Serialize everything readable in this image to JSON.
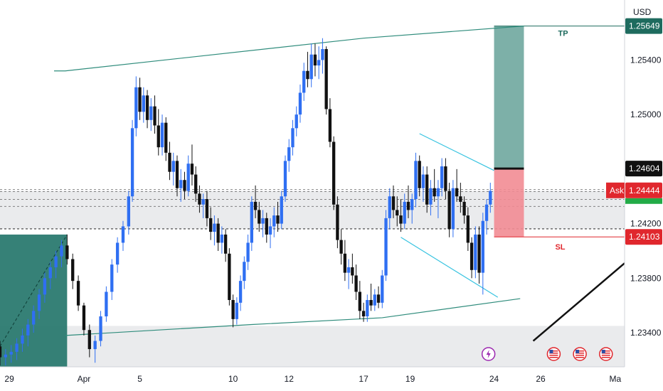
{
  "chart_data": {
    "type": "candlestick",
    "instrument_currency": "USD",
    "y_axis": {
      "ticks": [
        "1.25400",
        "1.25000",
        "1.24200",
        "1.23800",
        "1.23400"
      ],
      "tick_values": [
        1.254,
        1.25,
        1.242,
        1.238,
        1.234
      ],
      "ylim": [
        1.2315,
        1.2584
      ]
    },
    "x_axis": {
      "ticks": [
        "29",
        "Apr",
        "5",
        "10",
        "12",
        "17",
        "19",
        "24",
        "26",
        "Ma"
      ],
      "tick_positions": [
        0.0,
        4.0,
        7.0,
        12.0,
        15.0,
        19.0,
        21.5,
        26.0,
        28.5,
        32.5
      ],
      "xlim": [
        -0.5,
        33.0
      ]
    },
    "price_badges": [
      {
        "key": "tp",
        "text": "1.25649",
        "value": 1.25649,
        "color": "#1e6b5e"
      },
      {
        "key": "entry",
        "text": "1.24604",
        "value": 1.24604,
        "color": "#111111"
      },
      {
        "key": "ask",
        "label": "Ask",
        "text": "1.24444",
        "value": 1.24444,
        "color": "#e0272d"
      },
      {
        "key": "sl",
        "text": "1.24103",
        "value": 1.24103,
        "color": "#e0272d"
      }
    ],
    "position": {
      "entry": 1.24604,
      "target": 1.25649,
      "stop": 1.24103,
      "x_start": 26.0,
      "x_end": 27.6,
      "target_label": "TP",
      "stop_label": "SL",
      "profit_color": "#6fa79f",
      "loss_color": "#f28c93"
    },
    "zones": [
      {
        "low": 1.2416,
        "high": 1.2444
      },
      {
        "low": 1.2315,
        "high": 1.2345
      }
    ],
    "dashed_levels": [
      1.2445,
      1.24378,
      1.24164,
      1.2416,
      1.24326,
      1.24435
    ],
    "candles": [
      [
        -0.5,
        1.233,
        1.2334,
        1.2316,
        1.2322
      ],
      [
        -0.2,
        1.2322,
        1.2328,
        1.2316,
        1.2324
      ],
      [
        0.1,
        1.2324,
        1.2331,
        1.2318,
        1.2326
      ],
      [
        0.4,
        1.2326,
        1.2336,
        1.232,
        1.2332
      ],
      [
        0.7,
        1.2332,
        1.2343,
        1.2326,
        1.2338
      ],
      [
        1.0,
        1.2338,
        1.235,
        1.233,
        1.2346
      ],
      [
        1.3,
        1.2346,
        1.236,
        1.234,
        1.2356
      ],
      [
        1.6,
        1.2356,
        1.2372,
        1.235,
        1.2368
      ],
      [
        1.9,
        1.2368,
        1.2384,
        1.2362,
        1.238
      ],
      [
        2.2,
        1.238,
        1.2392,
        1.2372,
        1.2388
      ],
      [
        2.5,
        1.2388,
        1.24,
        1.238,
        1.2396
      ],
      [
        2.8,
        1.2396,
        1.2408,
        1.2388,
        1.2404
      ],
      [
        3.1,
        1.2404,
        1.2412,
        1.239,
        1.2394
      ],
      [
        3.4,
        1.2394,
        1.2398,
        1.2372,
        1.2378
      ],
      [
        3.7,
        1.2378,
        1.2382,
        1.2356,
        1.236
      ],
      [
        4.0,
        1.236,
        1.2362,
        1.2338,
        1.2342
      ],
      [
        4.3,
        1.2342,
        1.2346,
        1.2322,
        1.2328
      ],
      [
        4.6,
        1.2328,
        1.2338,
        1.2318,
        1.2334
      ],
      [
        4.9,
        1.2334,
        1.2356,
        1.233,
        1.2352
      ],
      [
        5.2,
        1.2352,
        1.2374,
        1.2348,
        1.237
      ],
      [
        5.5,
        1.237,
        1.2394,
        1.2364,
        1.239
      ],
      [
        5.8,
        1.239,
        1.241,
        1.2384,
        1.2406
      ],
      [
        6.1,
        1.2406,
        1.2422,
        1.24,
        1.2418
      ],
      [
        6.4,
        1.2418,
        1.2444,
        1.2412,
        1.244
      ],
      [
        6.6,
        1.244,
        1.2496,
        1.2436,
        1.249
      ],
      [
        6.8,
        1.249,
        1.2528,
        1.2484,
        1.252
      ],
      [
        7.0,
        1.252,
        1.2527,
        1.2496,
        1.2502
      ],
      [
        7.2,
        1.2502,
        1.252,
        1.2494,
        1.2514
      ],
      [
        7.4,
        1.2514,
        1.2518,
        1.249,
        1.2496
      ],
      [
        7.6,
        1.2496,
        1.2512,
        1.2488,
        1.2506
      ],
      [
        7.8,
        1.2506,
        1.2514,
        1.2486,
        1.2492
      ],
      [
        8.0,
        1.2492,
        1.2504,
        1.247,
        1.2476
      ],
      [
        8.2,
        1.2476,
        1.25,
        1.247,
        1.2494
      ],
      [
        8.4,
        1.2494,
        1.2498,
        1.2466,
        1.2472
      ],
      [
        8.6,
        1.2472,
        1.248,
        1.2452,
        1.2458
      ],
      [
        8.8,
        1.2458,
        1.2472,
        1.2448,
        1.2466
      ],
      [
        9.0,
        1.2466,
        1.247,
        1.244,
        1.2446
      ],
      [
        9.2,
        1.2446,
        1.246,
        1.2436,
        1.2452
      ],
      [
        9.4,
        1.2452,
        1.2458,
        1.2438,
        1.2444
      ],
      [
        9.6,
        1.2444,
        1.247,
        1.244,
        1.2464
      ],
      [
        9.8,
        1.2464,
        1.2478,
        1.2448,
        1.2456
      ],
      [
        10.0,
        1.2456,
        1.2462,
        1.2436,
        1.2442
      ],
      [
        10.2,
        1.2442,
        1.2448,
        1.2428,
        1.2434
      ],
      [
        10.4,
        1.2434,
        1.2442,
        1.2424,
        1.2438
      ],
      [
        10.6,
        1.2438,
        1.2444,
        1.2418,
        1.2424
      ],
      [
        10.8,
        1.2424,
        1.2432,
        1.2408,
        1.2414
      ],
      [
        11.0,
        1.2414,
        1.2426,
        1.2404,
        1.242
      ],
      [
        11.2,
        1.242,
        1.2424,
        1.24,
        1.2406
      ],
      [
        11.4,
        1.2406,
        1.2418,
        1.2398,
        1.2412
      ],
      [
        11.6,
        1.2412,
        1.2416,
        1.2392,
        1.2398
      ],
      [
        11.8,
        1.2398,
        1.2402,
        1.236,
        1.2364
      ],
      [
        12.0,
        1.2364,
        1.2368,
        1.2344,
        1.235
      ],
      [
        12.2,
        1.235,
        1.2366,
        1.2346,
        1.2362
      ],
      [
        12.4,
        1.2362,
        1.2382,
        1.2356,
        1.2378
      ],
      [
        12.6,
        1.2378,
        1.2396,
        1.2372,
        1.2392
      ],
      [
        12.8,
        1.2392,
        1.2412,
        1.2386,
        1.2406
      ],
      [
        13.0,
        1.2406,
        1.244,
        1.24,
        1.2436
      ],
      [
        13.2,
        1.2436,
        1.2448,
        1.2424,
        1.243
      ],
      [
        13.4,
        1.243,
        1.2436,
        1.2414,
        1.242
      ],
      [
        13.6,
        1.242,
        1.243,
        1.241,
        1.2424
      ],
      [
        13.8,
        1.2424,
        1.2428,
        1.2406,
        1.2412
      ],
      [
        14.0,
        1.2412,
        1.2424,
        1.2402,
        1.2418
      ],
      [
        14.2,
        1.2418,
        1.2432,
        1.241,
        1.2426
      ],
      [
        14.4,
        1.2426,
        1.2436,
        1.2414,
        1.242
      ],
      [
        14.6,
        1.242,
        1.2444,
        1.2416,
        1.244
      ],
      [
        14.8,
        1.244,
        1.247,
        1.2436,
        1.2466
      ],
      [
        15.0,
        1.2466,
        1.2482,
        1.2458,
        1.2476
      ],
      [
        15.2,
        1.2476,
        1.2496,
        1.247,
        1.249
      ],
      [
        15.4,
        1.249,
        1.2506,
        1.2484,
        1.25
      ],
      [
        15.6,
        1.25,
        1.2522,
        1.2494,
        1.2516
      ],
      [
        15.8,
        1.2516,
        1.2538,
        1.251,
        1.2532
      ],
      [
        16.0,
        1.2532,
        1.2546,
        1.252,
        1.2526
      ],
      [
        16.2,
        1.2526,
        1.2552,
        1.252,
        1.2544
      ],
      [
        16.4,
        1.2544,
        1.2552,
        1.2528,
        1.2536
      ],
      [
        16.6,
        1.2536,
        1.255,
        1.2526,
        1.254
      ],
      [
        16.8,
        1.254,
        1.2556,
        1.253,
        1.2548
      ],
      [
        17.0,
        1.2548,
        1.255,
        1.25,
        1.2504
      ],
      [
        17.2,
        1.2504,
        1.2512,
        1.2476,
        1.248
      ],
      [
        17.4,
        1.248,
        1.2484,
        1.243,
        1.2434
      ],
      [
        17.6,
        1.2434,
        1.244,
        1.2402,
        1.2408
      ],
      [
        17.8,
        1.2408,
        1.2416,
        1.239,
        1.2398
      ],
      [
        18.0,
        1.2398,
        1.2408,
        1.2378,
        1.2384
      ],
      [
        18.2,
        1.2384,
        1.2394,
        1.2372,
        1.2388
      ],
      [
        18.4,
        1.2388,
        1.2398,
        1.2376,
        1.2382
      ],
      [
        18.6,
        1.2382,
        1.239,
        1.2364,
        1.237
      ],
      [
        18.8,
        1.237,
        1.2378,
        1.235,
        1.2356
      ],
      [
        19.0,
        1.2356,
        1.2362,
        1.2348,
        1.2352
      ],
      [
        19.2,
        1.2352,
        1.2368,
        1.2348,
        1.2364
      ],
      [
        19.4,
        1.2364,
        1.2376,
        1.2356,
        1.236
      ],
      [
        19.6,
        1.236,
        1.2372,
        1.2356,
        1.2368
      ],
      [
        19.8,
        1.2368,
        1.2374,
        1.2358,
        1.2362
      ],
      [
        20.0,
        1.2362,
        1.2386,
        1.2358,
        1.2382
      ],
      [
        20.2,
        1.2382,
        1.243,
        1.2378,
        1.2424
      ],
      [
        20.4,
        1.2424,
        1.2446,
        1.2416,
        1.244
      ],
      [
        20.6,
        1.244,
        1.2448,
        1.2424,
        1.243
      ],
      [
        20.8,
        1.243,
        1.244,
        1.2418,
        1.2426
      ],
      [
        21.0,
        1.2426,
        1.2438,
        1.2414,
        1.242
      ],
      [
        21.2,
        1.242,
        1.2442,
        1.2416,
        1.2436
      ],
      [
        21.4,
        1.2436,
        1.2448,
        1.2424,
        1.243
      ],
      [
        21.6,
        1.243,
        1.2442,
        1.242,
        1.2438
      ],
      [
        21.8,
        1.2438,
        1.2472,
        1.2432,
        1.2466
      ],
      [
        22.0,
        1.2466,
        1.247,
        1.244,
        1.2446
      ],
      [
        22.2,
        1.2446,
        1.2462,
        1.2436,
        1.2456
      ],
      [
        22.4,
        1.2456,
        1.2462,
        1.2428,
        1.2434
      ],
      [
        22.6,
        1.2434,
        1.2452,
        1.2426,
        1.2446
      ],
      [
        22.8,
        1.2446,
        1.246,
        1.2436,
        1.244
      ],
      [
        23.0,
        1.244,
        1.2452,
        1.2424,
        1.2446
      ],
      [
        23.2,
        1.2446,
        1.2468,
        1.244,
        1.2462
      ],
      [
        23.4,
        1.2462,
        1.2468,
        1.2438,
        1.2444
      ],
      [
        23.6,
        1.2444,
        1.245,
        1.241,
        1.2416
      ],
      [
        23.8,
        1.2416,
        1.2452,
        1.241,
        1.2446
      ],
      [
        24.0,
        1.2446,
        1.246,
        1.2436,
        1.244
      ],
      [
        24.2,
        1.244,
        1.245,
        1.2428,
        1.2436
      ],
      [
        24.4,
        1.2436,
        1.244,
        1.242,
        1.2426
      ],
      [
        24.6,
        1.2426,
        1.2432,
        1.24,
        1.2406
      ],
      [
        24.8,
        1.2406,
        1.241,
        1.238,
        1.2386
      ],
      [
        25.0,
        1.2386,
        1.2418,
        1.238,
        1.2412
      ],
      [
        25.2,
        1.2412,
        1.2418,
        1.2376,
        1.2384
      ],
      [
        25.4,
        1.2384,
        1.2428,
        1.2368,
        1.2422
      ],
      [
        25.6,
        1.2422,
        1.2438,
        1.2412,
        1.2434
      ],
      [
        25.8,
        1.2434,
        1.245,
        1.2428,
        1.2444
      ]
    ],
    "price_color_up": "#2f6ff2",
    "price_color_down": "#111111",
    "series": [
      {
        "points": [
          [
            2.4,
            1.2532
          ],
          [
            3.0,
            1.2532
          ],
          [
            19.0,
            1.2556
          ],
          [
            27.6,
            1.25649
          ]
        ],
        "style": "trend",
        "color": "#2f8c7c"
      },
      {
        "points": [
          [
            3.0,
            1.2338
          ],
          [
            13.0,
            1.2346
          ],
          [
            20.0,
            1.2351
          ],
          [
            27.4,
            1.2365
          ]
        ],
        "style": "trend",
        "color": "#2f8c7c"
      },
      {
        "points": [
          [
            22.0,
            1.2486
          ],
          [
            26.0,
            1.2459
          ]
        ],
        "style": "channel",
        "color": "#36c3e0"
      },
      {
        "points": [
          [
            21.0,
            1.241
          ],
          [
            26.2,
            1.2366
          ]
        ],
        "style": "channel",
        "color": "#36c3e0"
      },
      {
        "points": [
          [
            28.1,
            1.2334
          ],
          [
            33.0,
            1.2391
          ]
        ],
        "style": "thick",
        "color": "#111111"
      }
    ],
    "event_icons": [
      {
        "x": 25.7,
        "name": "lightning-event-icon",
        "color": "#9c27b0"
      },
      {
        "x": 29.2,
        "name": "us-flag-event-icon",
        "color": "#e0272d"
      },
      {
        "x": 30.6,
        "name": "us-flag-event-icon",
        "color": "#e0272d"
      },
      {
        "x": 32.0,
        "name": "us-flag-event-icon",
        "color": "#e0272d"
      }
    ]
  }
}
